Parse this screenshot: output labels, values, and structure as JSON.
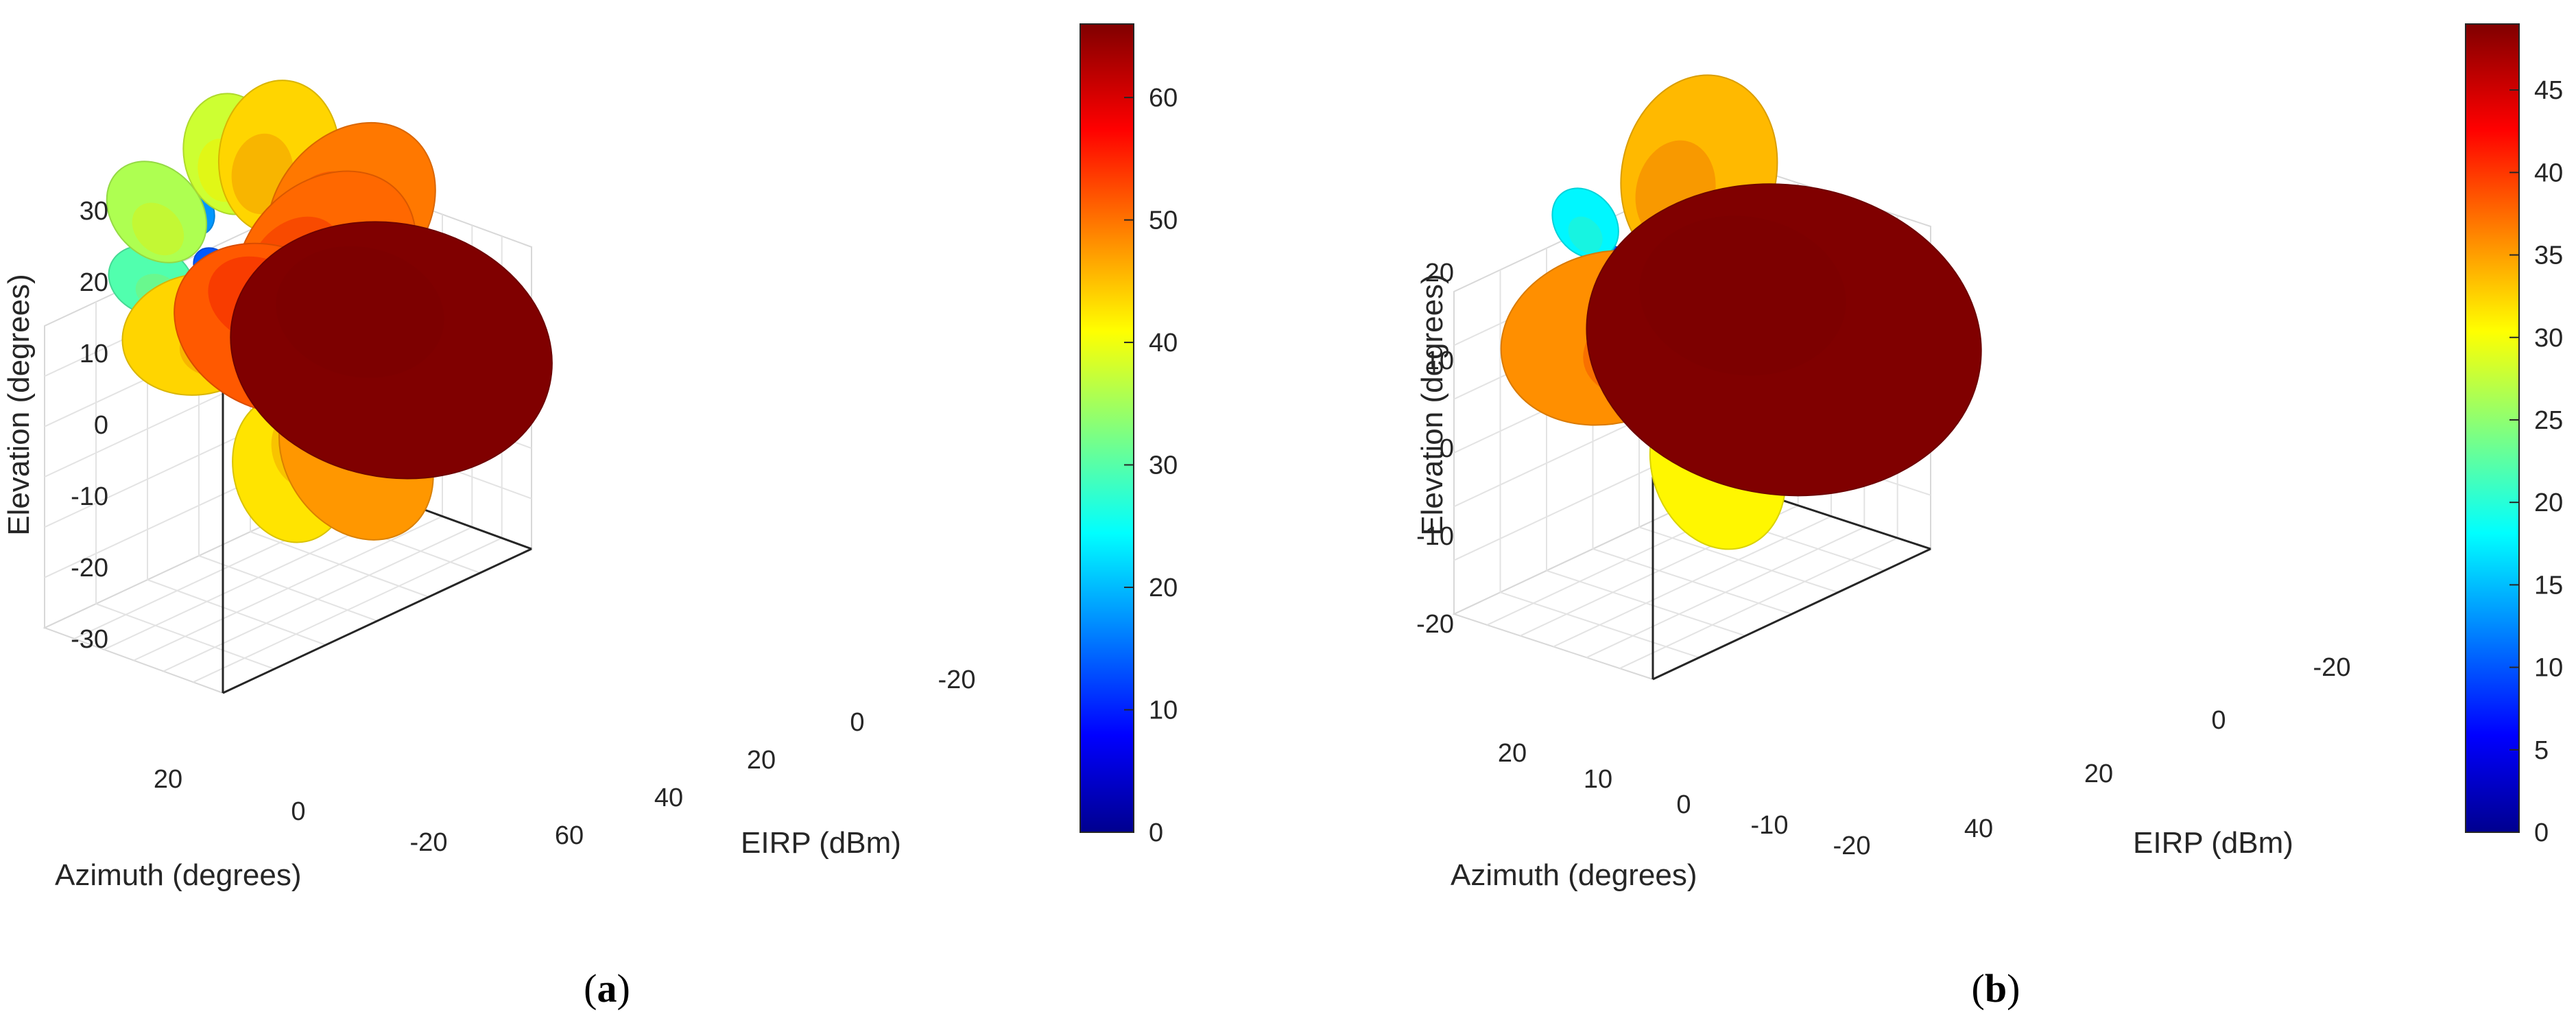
{
  "chart_data": [
    {
      "type": "3d-surface",
      "panel_label": "a",
      "title": "",
      "xlabel": "Azimuth (degrees)",
      "ylabel": "EIRP (dBm)",
      "zlabel": "Elevation (degrees)",
      "azimuth_ticks": [
        "20",
        "0",
        "-20"
      ],
      "eirp_ticks": [
        "60",
        "40",
        "20",
        "0",
        "-20"
      ],
      "elevation_ticks": [
        "30",
        "20",
        "10",
        "0",
        "-10",
        "-20",
        "-30"
      ],
      "colorbar": {
        "min": 0,
        "max": 66,
        "ticks": [
          "60",
          "50",
          "40",
          "30",
          "20",
          "10",
          "0"
        ],
        "colormap": "jet"
      },
      "lobes": [
        {
          "azimuth": 18,
          "elevation": -4,
          "eirp": 66
        },
        {
          "azimuth": 10,
          "elevation": 10,
          "eirp": 51
        },
        {
          "azimuth": 14,
          "elevation": 18,
          "eirp": 50
        },
        {
          "azimuth": 3,
          "elevation": 28,
          "eirp": 44
        },
        {
          "azimuth": -5,
          "elevation": 30,
          "eirp": 38
        },
        {
          "azimuth": 2,
          "elevation": -1,
          "eirp": 52
        },
        {
          "azimuth": -10,
          "elevation": -2,
          "eirp": 44
        },
        {
          "azimuth": 15,
          "elevation": -22,
          "eirp": 48
        },
        {
          "azimuth": 5,
          "elevation": -25,
          "eirp": 43
        },
        {
          "azimuth": -18,
          "elevation": 20,
          "eirp": 36
        },
        {
          "azimuth": -20,
          "elevation": 8,
          "eirp": 30
        },
        {
          "azimuth": -14,
          "elevation": 24,
          "eirp": 18
        },
        {
          "azimuth": -10,
          "elevation": 12,
          "eirp": 14
        },
        {
          "azimuth": -5,
          "elevation": 6,
          "eirp": 27
        }
      ]
    },
    {
      "type": "3d-surface",
      "panel_label": "b",
      "title": "",
      "xlabel": "Azimuth (degrees)",
      "ylabel": "EIRP (dBm)",
      "zlabel": "Elevation (degrees)",
      "azimuth_ticks": [
        "20",
        "10",
        "0",
        "-10",
        "-20"
      ],
      "eirp_ticks": [
        "40",
        "20",
        "0",
        "-20"
      ],
      "elevation_ticks": [
        "20",
        "10",
        "0",
        "-10",
        "-20"
      ],
      "colorbar": {
        "min": 0,
        "max": 49,
        "ticks": [
          "45",
          "40",
          "35",
          "30",
          "25",
          "20",
          "15",
          "10",
          "5",
          "0"
        ],
        "colormap": "jet"
      },
      "lobes": [
        {
          "azimuth": 15,
          "elevation": -2,
          "eirp": 49
        },
        {
          "azimuth": 5,
          "elevation": 20,
          "eirp": 34
        },
        {
          "azimuth": -8,
          "elevation": -2,
          "eirp": 36
        },
        {
          "azimuth": 8,
          "elevation": -20,
          "eirp": 31
        },
        {
          "azimuth": -14,
          "elevation": 16,
          "eirp": 18
        },
        {
          "azimuth": -10,
          "elevation": 10,
          "eirp": 10
        }
      ]
    }
  ]
}
